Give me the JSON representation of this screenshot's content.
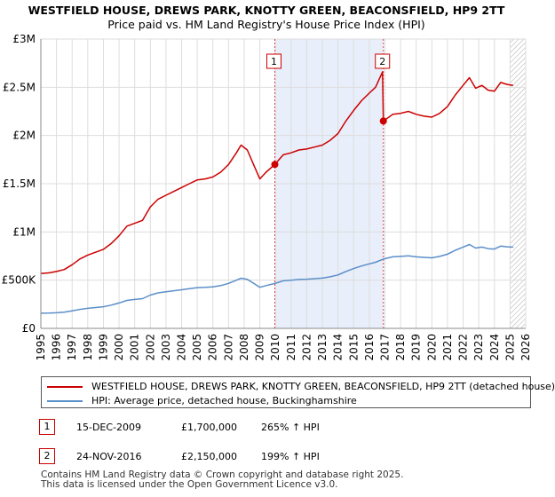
{
  "chart_data": {
    "type": "line",
    "title": "WESTFIELD HOUSE, DREWS PARK, KNOTTY GREEN, BEACONSFIELD, HP9 2TT",
    "subtitle": "Price paid vs. HM Land Registry's House Price Index (HPI)",
    "xlim": [
      1995,
      2026
    ],
    "ylim": [
      0,
      3000000
    ],
    "y_ticks": [
      {
        "value": 0,
        "label": "£0"
      },
      {
        "value": 500000,
        "label": "£500K"
      },
      {
        "value": 1000000,
        "label": "£1M"
      },
      {
        "value": 1500000,
        "label": "£1.5M"
      },
      {
        "value": 2000000,
        "label": "£2M"
      },
      {
        "value": 2500000,
        "label": "£2.5M"
      },
      {
        "value": 3000000,
        "label": "£3M"
      }
    ],
    "x_ticks": [
      "1995",
      "1996",
      "1997",
      "1998",
      "1999",
      "2000",
      "2001",
      "2002",
      "2003",
      "2004",
      "2005",
      "2006",
      "2007",
      "2008",
      "2009",
      "2010",
      "2011",
      "2012",
      "2013",
      "2014",
      "2015",
      "2016",
      "2017",
      "2018",
      "2019",
      "2020",
      "2021",
      "2022",
      "2023",
      "2024",
      "2025",
      "2026"
    ],
    "shaded_span": [
      2009.96,
      2016.9
    ],
    "hatch_from": 2025.0,
    "series": [
      {
        "name": "WESTFIELD HOUSE, DREWS PARK, KNOTTY GREEN, BEACONSFIELD, HP9 2TT (detached house)",
        "color": "#cc0000",
        "points": [
          [
            1995.0,
            570000
          ],
          [
            1995.5,
            575000
          ],
          [
            1996.0,
            590000
          ],
          [
            1996.5,
            610000
          ],
          [
            1997.0,
            660000
          ],
          [
            1997.5,
            720000
          ],
          [
            1998.0,
            760000
          ],
          [
            1998.5,
            790000
          ],
          [
            1999.0,
            820000
          ],
          [
            1999.5,
            880000
          ],
          [
            2000.0,
            960000
          ],
          [
            2000.5,
            1060000
          ],
          [
            2001.0,
            1090000
          ],
          [
            2001.5,
            1120000
          ],
          [
            2002.0,
            1260000
          ],
          [
            2002.5,
            1340000
          ],
          [
            2003.0,
            1380000
          ],
          [
            2003.5,
            1420000
          ],
          [
            2004.0,
            1460000
          ],
          [
            2004.5,
            1500000
          ],
          [
            2005.0,
            1540000
          ],
          [
            2005.5,
            1550000
          ],
          [
            2006.0,
            1570000
          ],
          [
            2006.5,
            1620000
          ],
          [
            2007.0,
            1700000
          ],
          [
            2007.5,
            1820000
          ],
          [
            2007.8,
            1900000
          ],
          [
            2008.2,
            1850000
          ],
          [
            2008.6,
            1700000
          ],
          [
            2009.0,
            1550000
          ],
          [
            2009.4,
            1620000
          ],
          [
            2009.96,
            1700000
          ],
          [
            2010.5,
            1800000
          ],
          [
            2011.0,
            1820000
          ],
          [
            2011.5,
            1850000
          ],
          [
            2012.0,
            1860000
          ],
          [
            2012.5,
            1880000
          ],
          [
            2013.0,
            1900000
          ],
          [
            2013.5,
            1950000
          ],
          [
            2014.0,
            2020000
          ],
          [
            2014.5,
            2150000
          ],
          [
            2015.0,
            2260000
          ],
          [
            2015.5,
            2360000
          ],
          [
            2016.0,
            2440000
          ],
          [
            2016.4,
            2500000
          ],
          [
            2016.85,
            2660000
          ],
          [
            2016.9,
            2150000
          ],
          [
            2017.5,
            2220000
          ],
          [
            2018.0,
            2230000
          ],
          [
            2018.5,
            2250000
          ],
          [
            2019.0,
            2220000
          ],
          [
            2019.5,
            2200000
          ],
          [
            2020.0,
            2190000
          ],
          [
            2020.5,
            2230000
          ],
          [
            2021.0,
            2300000
          ],
          [
            2021.5,
            2420000
          ],
          [
            2022.0,
            2520000
          ],
          [
            2022.4,
            2600000
          ],
          [
            2022.8,
            2490000
          ],
          [
            2023.2,
            2520000
          ],
          [
            2023.6,
            2470000
          ],
          [
            2024.0,
            2460000
          ],
          [
            2024.4,
            2550000
          ],
          [
            2024.8,
            2530000
          ],
          [
            2025.2,
            2520000
          ]
        ]
      },
      {
        "name": "HPI: Average price, detached house, Buckinghamshire",
        "color": "#5b8fc9",
        "points": [
          [
            1995.0,
            157000
          ],
          [
            1995.5,
            158000
          ],
          [
            1996.0,
            162000
          ],
          [
            1996.5,
            168000
          ],
          [
            1997.0,
            182000
          ],
          [
            1997.5,
            197000
          ],
          [
            1998.0,
            208000
          ],
          [
            1998.5,
            216000
          ],
          [
            1999.0,
            225000
          ],
          [
            1999.5,
            241000
          ],
          [
            2000.0,
            263000
          ],
          [
            2000.5,
            290000
          ],
          [
            2001.0,
            300000
          ],
          [
            2001.5,
            308000
          ],
          [
            2002.0,
            345000
          ],
          [
            2002.5,
            368000
          ],
          [
            2003.0,
            380000
          ],
          [
            2003.5,
            390000
          ],
          [
            2004.0,
            400000
          ],
          [
            2004.5,
            412000
          ],
          [
            2005.0,
            422000
          ],
          [
            2005.5,
            425000
          ],
          [
            2006.0,
            430000
          ],
          [
            2006.5,
            444000
          ],
          [
            2007.0,
            467000
          ],
          [
            2007.5,
            500000
          ],
          [
            2007.8,
            520000
          ],
          [
            2008.2,
            508000
          ],
          [
            2008.6,
            468000
          ],
          [
            2009.0,
            426000
          ],
          [
            2009.4,
            444000
          ],
          [
            2009.96,
            466000
          ],
          [
            2010.5,
            493000
          ],
          [
            2011.0,
            499000
          ],
          [
            2011.5,
            507000
          ],
          [
            2012.0,
            510000
          ],
          [
            2012.5,
            515000
          ],
          [
            2013.0,
            521000
          ],
          [
            2013.5,
            535000
          ],
          [
            2014.0,
            554000
          ],
          [
            2014.5,
            590000
          ],
          [
            2015.0,
            620000
          ],
          [
            2015.5,
            647000
          ],
          [
            2016.0,
            669000
          ],
          [
            2016.4,
            686000
          ],
          [
            2016.9,
            719000
          ],
          [
            2017.5,
            742000
          ],
          [
            2018.0,
            746000
          ],
          [
            2018.5,
            752000
          ],
          [
            2019.0,
            742000
          ],
          [
            2019.5,
            736000
          ],
          [
            2020.0,
            732000
          ],
          [
            2020.5,
            746000
          ],
          [
            2021.0,
            769000
          ],
          [
            2021.5,
            810000
          ],
          [
            2022.0,
            843000
          ],
          [
            2022.4,
            870000
          ],
          [
            2022.8,
            833000
          ],
          [
            2023.2,
            843000
          ],
          [
            2023.6,
            826000
          ],
          [
            2024.0,
            823000
          ],
          [
            2024.4,
            853000
          ],
          [
            2024.8,
            846000
          ],
          [
            2025.2,
            843000
          ]
        ]
      }
    ],
    "markers": [
      {
        "label": "1",
        "x": 2009.96,
        "y": 1700000
      },
      {
        "label": "2",
        "x": 2016.9,
        "y": 2150000
      }
    ]
  },
  "legend": {
    "property": "WESTFIELD HOUSE, DREWS PARK, KNOTTY GREEN, BEACONSFIELD, HP9 2TT (detached house)",
    "hpi": "HPI: Average price, detached house, Buckinghamshire"
  },
  "sales": [
    {
      "num": "1",
      "date": "15-DEC-2009",
      "price": "£1,700,000",
      "hpi": "265% ↑ HPI"
    },
    {
      "num": "2",
      "date": "24-NOV-2016",
      "price": "£2,150,000",
      "hpi": "199% ↑ HPI"
    }
  ],
  "footer": {
    "line1": "Contains HM Land Registry data © Crown copyright and database right 2025.",
    "line2": "This data is licensed under the Open Government Licence v3.0."
  },
  "colors": {
    "property_line": "#cc0000",
    "hpi_line": "#5b8fc9",
    "shade": "#e8eefa",
    "grid": "#dddddd"
  }
}
